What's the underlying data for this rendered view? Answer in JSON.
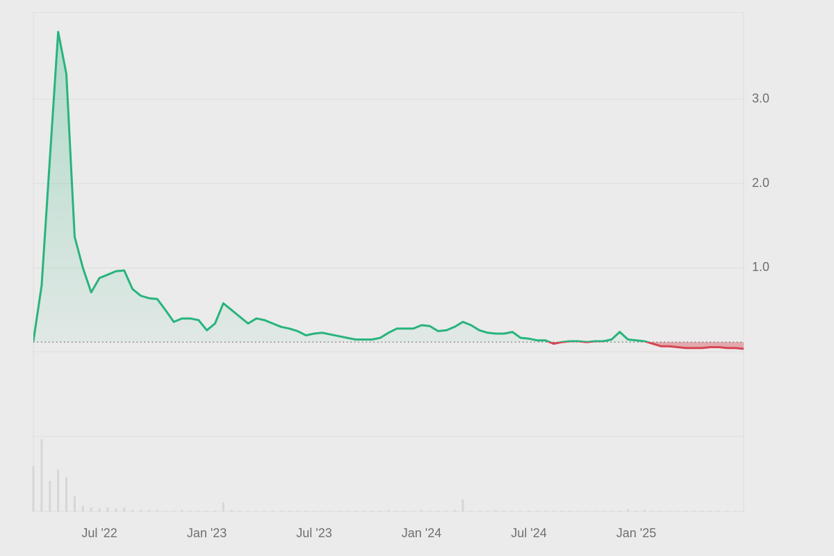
{
  "chart_data": {
    "type": "area",
    "categories": [
      null,
      null,
      null,
      null,
      null,
      null,
      null,
      null,
      "Jul '22",
      null,
      null,
      null,
      null,
      null,
      null,
      null,
      null,
      null,
      null,
      null,
      null,
      "Jan '23",
      null,
      null,
      null,
      null,
      null,
      null,
      null,
      null,
      null,
      null,
      null,
      null,
      "Jul '23",
      null,
      null,
      null,
      null,
      null,
      null,
      null,
      null,
      null,
      null,
      null,
      null,
      "Jan '24",
      null,
      null,
      null,
      null,
      null,
      null,
      null,
      null,
      null,
      null,
      null,
      null,
      "Jul '24",
      null,
      null,
      null,
      null,
      null,
      null,
      null,
      null,
      null,
      null,
      null,
      null,
      "Jan '25",
      null,
      null,
      null,
      null,
      null,
      null,
      null,
      null,
      null,
      null,
      null,
      null,
      null
    ],
    "values": [
      0.13,
      0.79,
      2.3,
      3.8,
      3.3,
      1.37,
      1.0,
      0.71,
      0.88,
      0.92,
      0.96,
      0.97,
      0.75,
      0.67,
      0.64,
      0.63,
      0.5,
      0.36,
      0.4,
      0.4,
      0.38,
      0.26,
      0.34,
      0.58,
      0.5,
      0.42,
      0.34,
      0.4,
      0.38,
      0.34,
      0.3,
      0.28,
      0.25,
      0.2,
      0.22,
      0.23,
      0.21,
      0.19,
      0.17,
      0.15,
      0.15,
      0.15,
      0.17,
      0.23,
      0.28,
      0.28,
      0.28,
      0.32,
      0.31,
      0.25,
      0.26,
      0.3,
      0.36,
      0.32,
      0.26,
      0.23,
      0.22,
      0.22,
      0.24,
      0.17,
      0.16,
      0.14,
      0.14,
      0.1,
      0.12,
      0.13,
      0.13,
      0.12,
      0.13,
      0.13,
      0.15,
      0.24,
      0.15,
      0.14,
      0.13,
      0.1,
      0.07,
      0.07,
      0.06,
      0.05,
      0.05,
      0.05,
      0.06,
      0.06,
      0.05,
      0.05,
      0.04
    ],
    "volume": [
      60,
      95,
      40,
      55,
      45,
      20,
      8,
      5,
      4,
      5,
      4,
      5,
      2,
      2,
      2,
      2,
      1,
      1,
      2,
      1,
      1,
      1,
      1,
      12,
      2,
      1,
      1,
      1,
      1,
      1,
      1,
      1,
      1,
      1,
      1,
      1,
      1,
      1,
      1,
      1,
      1,
      1,
      1,
      2,
      1,
      1,
      1,
      2,
      1,
      1,
      1,
      2,
      16,
      1,
      1,
      1,
      2,
      1,
      1,
      1,
      1,
      1,
      1,
      1,
      1,
      1,
      1,
      1,
      1,
      1,
      1,
      1,
      3,
      1,
      2,
      1,
      1,
      1,
      1,
      1,
      1,
      1,
      1,
      1,
      1,
      1,
      1
    ],
    "baseline": 0.12,
    "ylim": [
      -1.0,
      4.03
    ],
    "yticks": [
      {
        "value": 1,
        "label": "1.0"
      },
      {
        "value": 2,
        "label": "2.0"
      },
      {
        "value": 3,
        "label": "3.0"
      }
    ],
    "grid": true,
    "up_color": "#27b47c",
    "down_color": "#d64553",
    "volume_color": "#d6d6d6"
  }
}
